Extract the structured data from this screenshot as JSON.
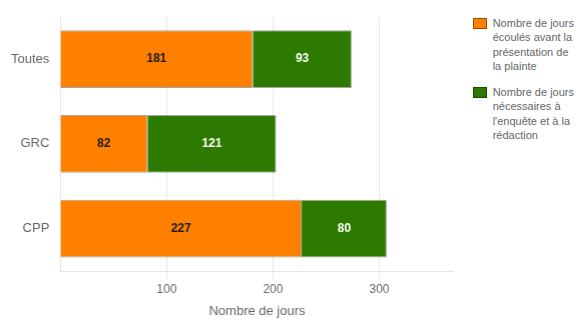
{
  "chart_data": {
    "type": "bar",
    "orientation": "horizontal",
    "stacked": true,
    "categories": [
      "CPP",
      "GRC",
      "Toutes"
    ],
    "series": [
      {
        "name": "Nombre de jours\nécoulés avant la\nprésentation de\nla plainte",
        "color": "#FF8000",
        "values": [
          227,
          82,
          181
        ]
      },
      {
        "name": "Nombre de jours\nnécessaires à\nl'enquête et à la\nrédaction",
        "color": "#2D7A00",
        "values": [
          80,
          121,
          93
        ]
      }
    ],
    "xlabel": "Nombre de jours",
    "xlim": [
      0,
      370
    ],
    "xticks": [
      100,
      200,
      300
    ],
    "grid": true,
    "data_labels": true,
    "legend": "right"
  }
}
